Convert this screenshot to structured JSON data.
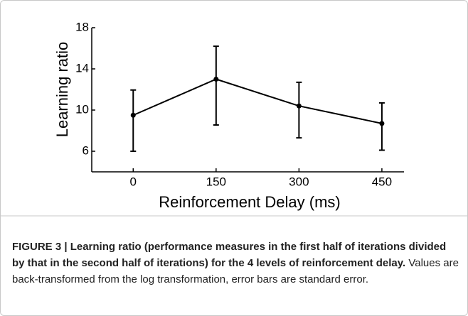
{
  "chart_data": {
    "type": "line",
    "x": [
      0,
      150,
      300,
      450
    ],
    "values": [
      9.5,
      13.0,
      10.4,
      8.7
    ],
    "lower": [
      6.0,
      8.55,
      7.3,
      6.1
    ],
    "upper": [
      11.95,
      16.2,
      12.7,
      10.7
    ],
    "color": "#000000",
    "xlabel": "Reinforcement Delay (ms)",
    "ylabel": "Learning ratio",
    "xlim": [
      -75,
      490
    ],
    "xticks": [
      0,
      150,
      300,
      450
    ],
    "ylim": [
      4,
      18
    ],
    "yticks": [
      6,
      10,
      14,
      18
    ]
  },
  "caption": {
    "bold": "FIGURE 3 | Learning ratio (performance measures in the first half of iterations divided by that in the second half of iterations) for the 4 levels of reinforcement delay.",
    "text": "Values are back-transformed from the log transformation, error bars are standard error."
  }
}
